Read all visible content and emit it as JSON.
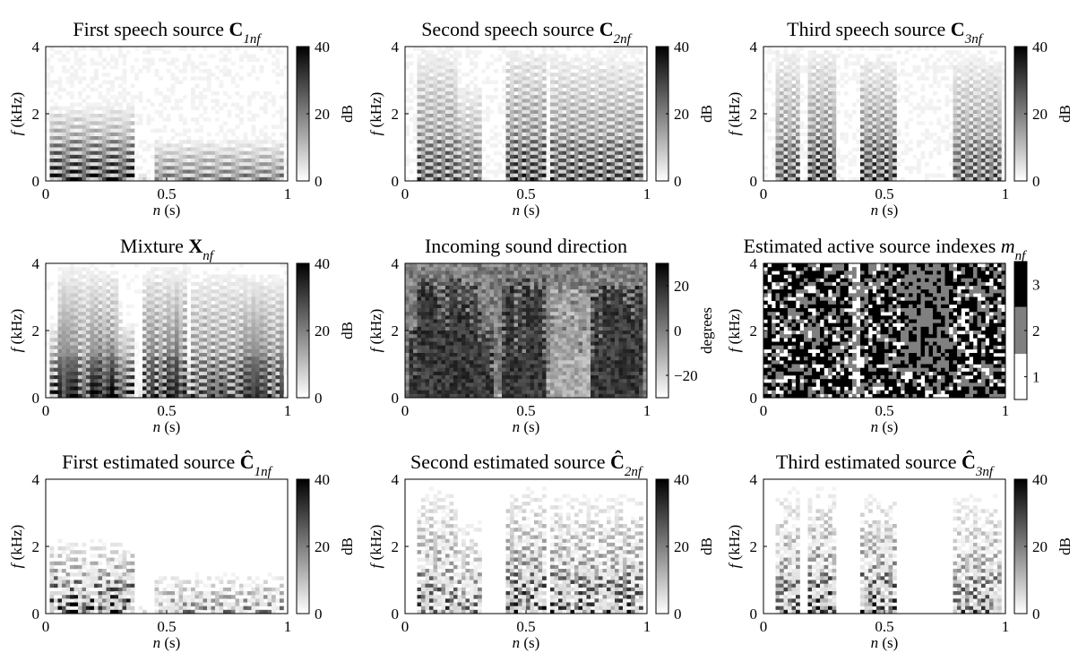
{
  "figure_panels": [
    {
      "title": "First speech source ",
      "title_bold": "C",
      "title_sub": "1nf",
      "cbar_unit": "dB",
      "cbar_ticks": [
        "40",
        "20",
        "0"
      ]
    },
    {
      "title": "Second speech source ",
      "title_bold": "C",
      "title_sub": "2nf",
      "cbar_unit": "dB",
      "cbar_ticks": [
        "40",
        "20",
        "0"
      ]
    },
    {
      "title": "Third speech source ",
      "title_bold": "C",
      "title_sub": "3nf",
      "cbar_unit": "dB",
      "cbar_ticks": [
        "40",
        "20",
        "0"
      ]
    },
    {
      "title": "Mixture ",
      "title_bold": "X",
      "title_sub": "nf",
      "cbar_unit": "dB",
      "cbar_ticks": [
        "40",
        "20",
        "0"
      ]
    },
    {
      "title": "Incoming sound direction",
      "title_bold": "",
      "title_sub": "",
      "cbar_unit": "degrees",
      "cbar_ticks": [
        "20",
        "0",
        "−20"
      ]
    },
    {
      "title": "Estimated active source indexes ",
      "title_bold": "",
      "title_italic": "m",
      "title_sub": "nf",
      "cbar_unit": "",
      "cbar_ticks": [
        "3",
        "2",
        "1"
      ]
    },
    {
      "title": "First estimated source ",
      "title_bold": "Ĉ",
      "title_sub": "1nf",
      "cbar_unit": "dB",
      "cbar_ticks": [
        "40",
        "20",
        "0"
      ]
    },
    {
      "title": "Second estimated source ",
      "title_bold": "Ĉ",
      "title_sub": "2nf",
      "cbar_unit": "dB",
      "cbar_ticks": [
        "40",
        "20",
        "0"
      ]
    },
    {
      "title": "Third estimated source ",
      "title_bold": "Ĉ",
      "title_sub": "3nf",
      "cbar_unit": "dB",
      "cbar_ticks": [
        "40",
        "20",
        "0"
      ]
    }
  ],
  "axes": {
    "xlabel_italic": "n",
    "xlabel_rest": " (s)",
    "ylabel_italic": "f",
    "ylabel_rest": " (kHz)",
    "xticks": [
      "0",
      "0.5",
      "1"
    ],
    "yticks": [
      "4",
      "2",
      "0"
    ]
  },
  "chart_data": [
    {
      "type": "heatmap",
      "title": "First speech source C1nf",
      "xlabel": "n (s)",
      "ylabel": "f (kHz)",
      "xlim": [
        0,
        1
      ],
      "ylim": [
        0,
        4
      ],
      "colorbar": {
        "label": "dB",
        "range": [
          0,
          40
        ]
      }
    },
    {
      "type": "heatmap",
      "title": "Second speech source C2nf",
      "xlabel": "n (s)",
      "ylabel": "f (kHz)",
      "xlim": [
        0,
        1
      ],
      "ylim": [
        0,
        4
      ],
      "colorbar": {
        "label": "dB",
        "range": [
          0,
          40
        ]
      }
    },
    {
      "type": "heatmap",
      "title": "Third speech source C3nf",
      "xlabel": "n (s)",
      "ylabel": "f (kHz)",
      "xlim": [
        0,
        1
      ],
      "ylim": [
        0,
        4
      ],
      "colorbar": {
        "label": "dB",
        "range": [
          0,
          40
        ]
      }
    },
    {
      "type": "heatmap",
      "title": "Mixture Xnf",
      "xlabel": "n (s)",
      "ylabel": "f (kHz)",
      "xlim": [
        0,
        1
      ],
      "ylim": [
        0,
        4
      ],
      "colorbar": {
        "label": "dB",
        "range": [
          0,
          40
        ]
      }
    },
    {
      "type": "heatmap",
      "title": "Incoming sound direction",
      "xlabel": "n (s)",
      "ylabel": "f (kHz)",
      "xlim": [
        0,
        1
      ],
      "ylim": [
        0,
        4
      ],
      "colorbar": {
        "label": "degrees",
        "range": [
          -30,
          30
        ]
      }
    },
    {
      "type": "heatmap",
      "title": "Estimated active source indexes mnf",
      "xlabel": "n (s)",
      "ylabel": "f (kHz)",
      "xlim": [
        0,
        1
      ],
      "ylim": [
        0,
        4
      ],
      "colorbar": {
        "label": "",
        "categories": [
          1,
          2,
          3
        ]
      }
    },
    {
      "type": "heatmap",
      "title": "First estimated source Ĉ1nf",
      "xlabel": "n (s)",
      "ylabel": "f (kHz)",
      "xlim": [
        0,
        1
      ],
      "ylim": [
        0,
        4
      ],
      "colorbar": {
        "label": "dB",
        "range": [
          0,
          40
        ]
      }
    },
    {
      "type": "heatmap",
      "title": "Second estimated source Ĉ2nf",
      "xlabel": "n (s)",
      "ylabel": "f (kHz)",
      "xlim": [
        0,
        1
      ],
      "ylim": [
        0,
        4
      ],
      "colorbar": {
        "label": "dB",
        "range": [
          0,
          40
        ]
      }
    },
    {
      "type": "heatmap",
      "title": "Third estimated source Ĉ3nf",
      "xlabel": "n (s)",
      "ylabel": "f (kHz)",
      "xlim": [
        0,
        1
      ],
      "ylim": [
        0,
        4
      ],
      "colorbar": {
        "label": "dB",
        "range": [
          0,
          40
        ]
      }
    }
  ]
}
